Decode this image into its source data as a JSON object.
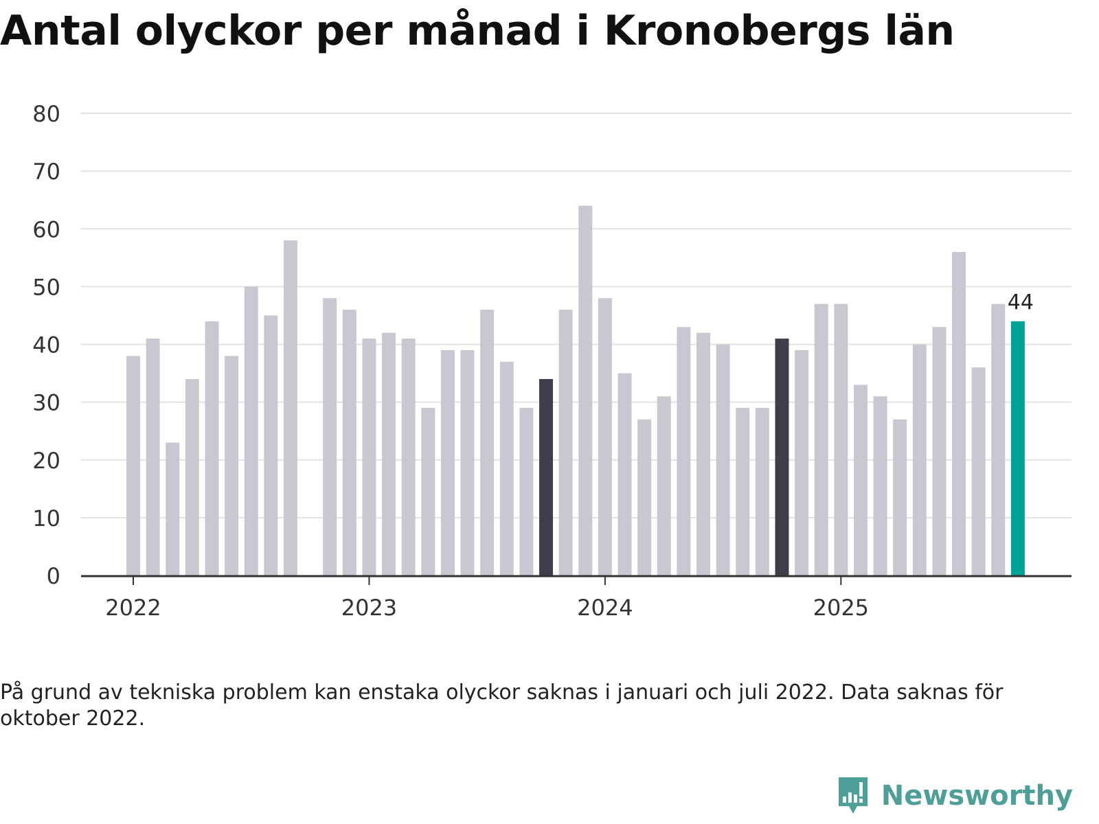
{
  "title": "Antal olyckor per månad i Kronobergs län",
  "footnote": "På grund av tekniska problem kan enstaka olyckor saknas i januari och juli 2022. Data saknas för oktober 2022.",
  "brand": {
    "name": "Newsworthy",
    "icon": "newsworthy-logo-icon"
  },
  "colors": {
    "default": "#c8c8d0",
    "highlight": "#3f3f4b",
    "latest": "#00a398",
    "grid": "#e2e2e2",
    "axis": "#333333"
  },
  "chart_data": {
    "type": "bar",
    "title": "Antal olyckor per månad i Kronobergs län",
    "xlabel": "",
    "ylabel": "",
    "ylim": [
      0,
      80
    ],
    "yticks": [
      0,
      10,
      20,
      30,
      40,
      50,
      60,
      70,
      80
    ],
    "grid": true,
    "x_ticks": [
      {
        "label": "2022",
        "year": 2022
      },
      {
        "label": "2023",
        "year": 2023
      },
      {
        "label": "2024",
        "year": 2024
      },
      {
        "label": "2025",
        "year": 2025
      }
    ],
    "bars": [
      {
        "month": "2022-01",
        "value": 38
      },
      {
        "month": "2022-02",
        "value": 41
      },
      {
        "month": "2022-03",
        "value": 23
      },
      {
        "month": "2022-04",
        "value": 34
      },
      {
        "month": "2022-05",
        "value": 44
      },
      {
        "month": "2022-06",
        "value": 38
      },
      {
        "month": "2022-07",
        "value": 50
      },
      {
        "month": "2022-08",
        "value": 45
      },
      {
        "month": "2022-09",
        "value": 58
      },
      {
        "month": "2022-10",
        "value": null
      },
      {
        "month": "2022-11",
        "value": 48
      },
      {
        "month": "2022-12",
        "value": 46
      },
      {
        "month": "2023-01",
        "value": 41
      },
      {
        "month": "2023-02",
        "value": 42
      },
      {
        "month": "2023-03",
        "value": 41
      },
      {
        "month": "2023-04",
        "value": 29
      },
      {
        "month": "2023-05",
        "value": 39
      },
      {
        "month": "2023-06",
        "value": 39
      },
      {
        "month": "2023-07",
        "value": 46
      },
      {
        "month": "2023-08",
        "value": 37
      },
      {
        "month": "2023-09",
        "value": 29
      },
      {
        "month": "2023-10",
        "value": 34,
        "highlight": "dark"
      },
      {
        "month": "2023-11",
        "value": 46
      },
      {
        "month": "2023-12",
        "value": 64
      },
      {
        "month": "2024-01",
        "value": 48
      },
      {
        "month": "2024-02",
        "value": 35
      },
      {
        "month": "2024-03",
        "value": 27
      },
      {
        "month": "2024-04",
        "value": 31
      },
      {
        "month": "2024-05",
        "value": 43
      },
      {
        "month": "2024-06",
        "value": 42
      },
      {
        "month": "2024-07",
        "value": 40
      },
      {
        "month": "2024-08",
        "value": 29
      },
      {
        "month": "2024-09",
        "value": 29
      },
      {
        "month": "2024-10",
        "value": 41,
        "highlight": "dark"
      },
      {
        "month": "2024-11",
        "value": 39
      },
      {
        "month": "2024-12",
        "value": 47
      },
      {
        "month": "2025-01",
        "value": 47
      },
      {
        "month": "2025-02",
        "value": 33
      },
      {
        "month": "2025-03",
        "value": 31
      },
      {
        "month": "2025-04",
        "value": 27
      },
      {
        "month": "2025-05",
        "value": 40
      },
      {
        "month": "2025-06",
        "value": 43
      },
      {
        "month": "2025-07",
        "value": 56
      },
      {
        "month": "2025-08",
        "value": 36
      },
      {
        "month": "2025-09",
        "value": 47
      },
      {
        "month": "2025-10",
        "value": 44,
        "highlight": "latest",
        "label": "44"
      }
    ]
  }
}
